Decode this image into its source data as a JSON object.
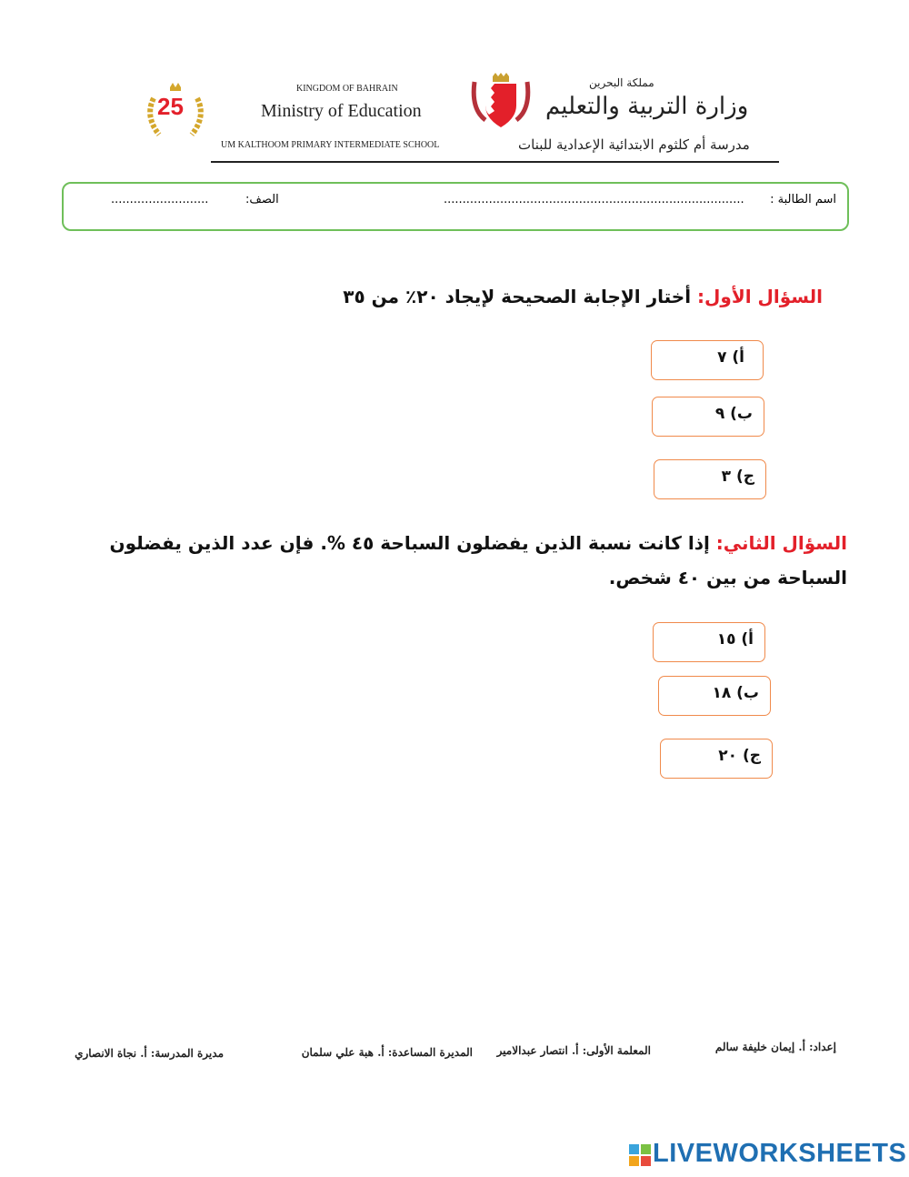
{
  "header": {
    "badge_number": "25",
    "kingdom_en": "KINGDOM OF BAHRAIN",
    "ministry_en": "Ministry of Education",
    "school_en": "UM KALTHOOM PRIMARY INTERMEDIATE SCHOOL",
    "kingdom_ar": "مملكة البحرين",
    "ministry_ar": "وزارة التربية والتعليم",
    "school_ar": "مدرسة أم كلثوم الابتدائية الإعدادية للبنات"
  },
  "student": {
    "name_label": "اسم الطالبة :",
    "name_value": "................................................................................",
    "class_label": "الصف:",
    "class_value": ".........................."
  },
  "questions": [
    {
      "label": "السؤال الأول:",
      "text": " أختار الإجابة الصحيحة لإيجاد ٢٠٪ من ٣٥",
      "options": [
        "أ)  ٧",
        "ب) ٩",
        "ج) ٣"
      ]
    },
    {
      "label": "السؤال الثاني:",
      "text": "  إذا كانت نسبة الذين يفضلون السباحة ٤٥ %.  فإن عدد الذين يفضلون السباحة من بين ٤٠ شخص.",
      "options": [
        "أ) ١٥",
        "ب) ١٨",
        "ج) ٢٠"
      ]
    }
  ],
  "footer": {
    "prepared": "إعداد: أ. إيمان خليفة سالم",
    "first_teacher": "المعلمة الأولى: أ. انتصار عبدالامير",
    "assistant_principal": "المديرة المساعدة: أ. هبة علي سلمان",
    "principal": "مديرة المدرسة: أ. نجاة الانصاري"
  },
  "brand": "LIVEWORKSHEETS",
  "colors": {
    "accent_red": "#e3202a",
    "option_border": "#f08a4b",
    "name_box_border": "#6fbf5a",
    "brand": "#1f6fb2"
  }
}
